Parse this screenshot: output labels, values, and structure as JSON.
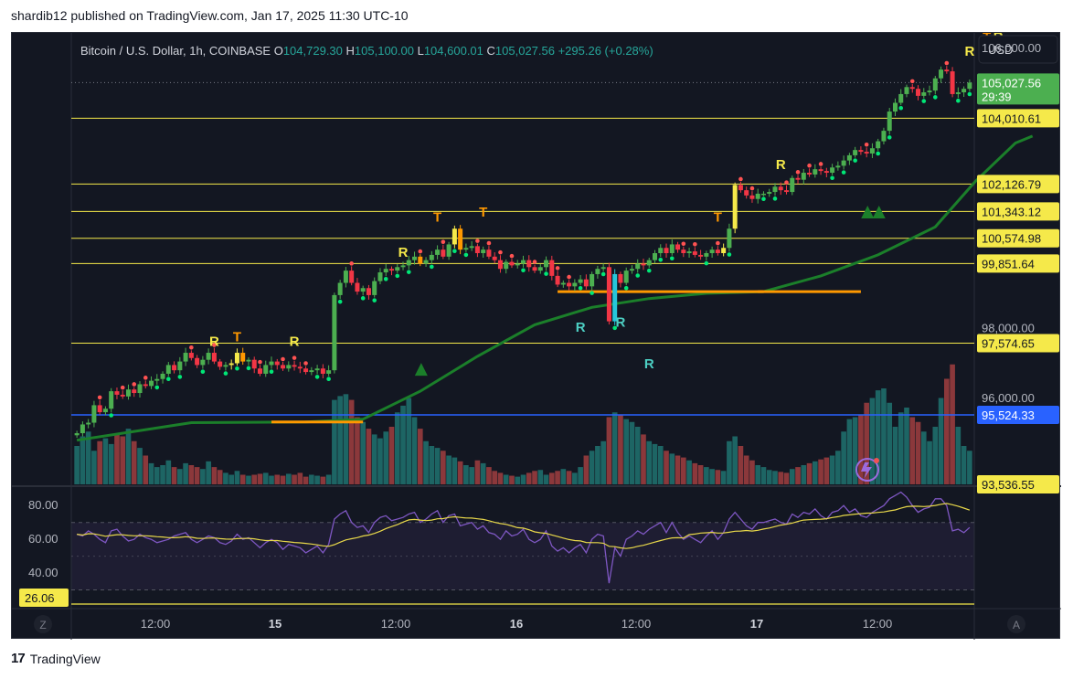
{
  "header": {
    "published": "shardib12 published on TradingView.com, Jan 17, 2025 11:30 UTC-10"
  },
  "legend": {
    "symbol": "Bitcoin / U.S. Dollar, 1h, COINBASE",
    "o_label": "O",
    "o": "104,729.30",
    "h_label": "H",
    "h": "105,100.00",
    "l_label": "L",
    "l": "104,600.01",
    "c_label": "C",
    "c": "105,027.56",
    "change": "+295.26 (+0.28%)"
  },
  "currency": "USD",
  "price_labels": [
    {
      "text": "106,000.00",
      "value": 106000,
      "style": "axis"
    },
    {
      "text": "105,027.56",
      "value": 105027.56,
      "style": "last",
      "sub": "29:39"
    },
    {
      "text": "104,010.61",
      "value": 104010.61,
      "style": "yellow"
    },
    {
      "text": "102,126.79",
      "value": 102126.79,
      "style": "yellow"
    },
    {
      "text": "101,343.12",
      "value": 101343.12,
      "style": "yellow"
    },
    {
      "text": "100,574.98",
      "value": 100574.98,
      "style": "yellow"
    },
    {
      "text": "99,851.64",
      "value": 99851.64,
      "style": "yellow"
    },
    {
      "text": "98,000.00",
      "value": 98000,
      "style": "axis"
    },
    {
      "text": "97,574.65",
      "value": 97574.65,
      "style": "yellow"
    },
    {
      "text": "96,000.00",
      "value": 96000,
      "style": "axis"
    },
    {
      "text": "95,524.33",
      "value": 95524.33,
      "style": "blue"
    },
    {
      "text": "93,536.55",
      "value": 93536.55,
      "style": "yellow"
    }
  ],
  "time_labels": [
    "12:00",
    "15",
    "12:00",
    "16",
    "12:00",
    "17",
    "12:00"
  ],
  "rsi_labels": [
    {
      "text": "80.00",
      "value": 80,
      "style": "axis"
    },
    {
      "text": "60.00",
      "value": 60,
      "style": "axis"
    },
    {
      "text": "40.00",
      "value": 40,
      "style": "axis"
    },
    {
      "text": "26.06",
      "value": 26.06,
      "style": "yellow"
    }
  ],
  "footer_buttons": {
    "left": "Z",
    "right": "A"
  },
  "brand": {
    "logo": "17",
    "name": "TradingView"
  },
  "colors": {
    "up": "#26a69a",
    "down": "#ef5350",
    "bull": "#4caf50",
    "bear": "#f23645",
    "yellow": "#f5e94a",
    "orange": "#ff9800",
    "blue": "#2962ff",
    "ma": "#1b7f2a",
    "rsi": "#7e57c2"
  },
  "chart_data": [
    {
      "type": "candlestick",
      "title": "Bitcoin / U.S. Dollar, 1h, COINBASE",
      "x_ticks": [
        "12:00",
        "15",
        "12:00",
        "16",
        "12:00",
        "17",
        "12:00"
      ],
      "ylim": [
        93536.55,
        106450
      ],
      "horizontal_levels": [
        104010.61,
        102126.79,
        101343.12,
        100574.98,
        99851.64,
        97574.65
      ],
      "blue_level": 95524.33,
      "last_price": 105027.56,
      "closes": [
        95000,
        95250,
        95300,
        95800,
        95600,
        95700,
        96200,
        96100,
        96050,
        96250,
        96150,
        96400,
        96350,
        96500,
        96550,
        96700,
        96950,
        96800,
        97050,
        97300,
        97150,
        96950,
        97100,
        97300,
        97050,
        96900,
        96950,
        97000,
        97300,
        97050,
        97100,
        96850,
        96700,
        96950,
        97050,
        96950,
        96850,
        96950,
        96900,
        96850,
        96750,
        96800,
        96850,
        96700,
        96800,
        98950,
        99300,
        99650,
        99300,
        99050,
        99150,
        98950,
        99350,
        99600,
        99700,
        99650,
        99750,
        99800,
        99950,
        100050,
        99850,
        99950,
        100100,
        100250,
        100050,
        100400,
        100850,
        100250,
        100300,
        100350,
        100150,
        100250,
        100050,
        99950,
        99700,
        99900,
        99800,
        99850,
        99950,
        99750,
        99650,
        99750,
        99950,
        99500,
        99250,
        99300,
        99200,
        99300,
        99400,
        99200,
        99550,
        99700,
        99750,
        98200,
        99550,
        99300,
        99650,
        99700,
        99850,
        99800,
        99950,
        100150,
        100300,
        100150,
        100400,
        100250,
        100150,
        100200,
        100100,
        100050,
        100150,
        100250,
        100150,
        100300,
        100850,
        102100,
        101950,
        101800,
        101700,
        101850,
        101850,
        101900,
        102050,
        101950,
        101900,
        102300,
        102250,
        102450,
        102400,
        102550,
        102500,
        102450,
        102600,
        102650,
        102800,
        102950,
        103100,
        103050,
        103000,
        103150,
        103350,
        103650,
        104200,
        104450,
        104700,
        104900,
        104850,
        104650,
        104750,
        104800,
        105150,
        105400,
        105350,
        104700,
        104750,
        104850,
        105027.56
      ],
      "volume_max": 100,
      "volume": [
        40,
        50,
        55,
        35,
        45,
        48,
        42,
        52,
        50,
        58,
        45,
        38,
        30,
        22,
        18,
        20,
        25,
        18,
        16,
        22,
        20,
        18,
        16,
        24,
        18,
        15,
        12,
        10,
        14,
        10,
        9,
        10,
        11,
        12,
        9,
        10,
        9,
        11,
        10,
        12,
        8,
        10,
        9,
        8,
        10,
        88,
        92,
        94,
        88,
        70,
        65,
        58,
        52,
        48,
        55,
        60,
        75,
        82,
        90,
        70,
        58,
        45,
        40,
        38,
        35,
        30,
        28,
        24,
        20,
        18,
        25,
        22,
        18,
        14,
        12,
        10,
        9,
        8,
        10,
        12,
        14,
        15,
        10,
        12,
        14,
        16,
        14,
        12,
        18,
        30,
        35,
        40,
        45,
        70,
        75,
        72,
        68,
        65,
        60,
        52,
        45,
        42,
        40,
        35,
        32,
        30,
        28,
        25,
        22,
        20,
        18,
        16,
        15,
        14,
        45,
        50,
        40,
        30,
        25,
        20,
        18,
        15,
        14,
        13,
        12,
        16,
        18,
        20,
        22,
        24,
        26,
        28,
        30,
        35,
        55,
        68,
        70,
        72,
        85,
        90,
        98,
        100,
        85,
        60,
        75,
        80,
        70,
        65,
        55,
        45,
        60,
        90,
        110,
        130,
        60,
        40,
        35
      ],
      "rsi_levels": [
        70,
        50,
        30
      ],
      "rsi": [
        63,
        62,
        65,
        63,
        60,
        58,
        65,
        66,
        62,
        59,
        60,
        63,
        61,
        60,
        58,
        59,
        60,
        62,
        63,
        64,
        60,
        58,
        60,
        62,
        61,
        58,
        57,
        59,
        63,
        60,
        61,
        58,
        55,
        58,
        60,
        58,
        54,
        57,
        56,
        55,
        52,
        54,
        56,
        52,
        57,
        72,
        75,
        77,
        70,
        67,
        68,
        64,
        70,
        73,
        74,
        71,
        72,
        73,
        75,
        76,
        70,
        72,
        75,
        77,
        70,
        74,
        75,
        68,
        69,
        70,
        66,
        68,
        64,
        63,
        60,
        65,
        62,
        63,
        66,
        60,
        58,
        60,
        65,
        56,
        53,
        55,
        52,
        55,
        57,
        52,
        60,
        63,
        62,
        34,
        55,
        50,
        60,
        62,
        65,
        63,
        66,
        68,
        70,
        64,
        70,
        64,
        60,
        62,
        60,
        58,
        62,
        65,
        60,
        64,
        72,
        76,
        72,
        68,
        66,
        70,
        70,
        71,
        72,
        70,
        69,
        75,
        73,
        76,
        75,
        78,
        74,
        72,
        76,
        77,
        80,
        76,
        78,
        74,
        73,
        76,
        78,
        80,
        84,
        86,
        88,
        85,
        80,
        76,
        78,
        79,
        84,
        84,
        80,
        65,
        66,
        64,
        67
      ],
      "rsi_ma_label": "26.06",
      "ma_points": [
        [
          0,
          94800
        ],
        [
          10,
          95050
        ],
        [
          20,
          95300
        ],
        [
          40,
          95320
        ],
        [
          50,
          95400
        ],
        [
          60,
          96200
        ],
        [
          70,
          97200
        ],
        [
          80,
          98100
        ],
        [
          90,
          98600
        ],
        [
          100,
          98850
        ],
        [
          110,
          99000
        ],
        [
          120,
          99050
        ],
        [
          130,
          99500
        ],
        [
          140,
          100100
        ],
        [
          150,
          100900
        ],
        [
          157,
          102200
        ],
        [
          164,
          103300
        ],
        [
          167,
          103500
        ]
      ],
      "orange_segments": [
        [
          34,
          50,
          95320
        ],
        [
          84,
          120,
          99050
        ],
        [
          119,
          137,
          99050
        ]
      ],
      "markers": [
        {
          "text": "R",
          "i": 24,
          "price": 97500,
          "color": "#f5e94a"
        },
        {
          "text": "T",
          "i": 28,
          "price": 97630,
          "color": "#ff9800"
        },
        {
          "text": "R",
          "i": 38,
          "price": 97500,
          "color": "#f5e94a"
        },
        {
          "text": "R",
          "i": 57,
          "price": 100050,
          "color": "#f5e94a"
        },
        {
          "text": "T",
          "i": 63,
          "price": 101050,
          "color": "#ff9800"
        },
        {
          "text": "T",
          "i": 71,
          "price": 101200,
          "color": "#ff9800"
        },
        {
          "text": "R",
          "i": 88,
          "price": 97900,
          "color": "#4dd0c4"
        },
        {
          "text": "R",
          "i": 95,
          "price": 98050,
          "color": "#4dd0c4"
        },
        {
          "text": "R",
          "i": 100,
          "price": 96850,
          "color": "#4dd0c4"
        },
        {
          "text": "T",
          "i": 112,
          "price": 101050,
          "color": "#ff9800"
        },
        {
          "text": "R",
          "i": 123,
          "price": 102550,
          "color": "#f5e94a"
        },
        {
          "text": "R",
          "i": 156,
          "price": 105800,
          "color": "#f5e94a"
        },
        {
          "text": "T",
          "i": 159,
          "price": 106200,
          "color": "#ff9800"
        },
        {
          "text": "R",
          "i": 161,
          "price": 106200,
          "color": "#f5e94a"
        }
      ]
    }
  ]
}
